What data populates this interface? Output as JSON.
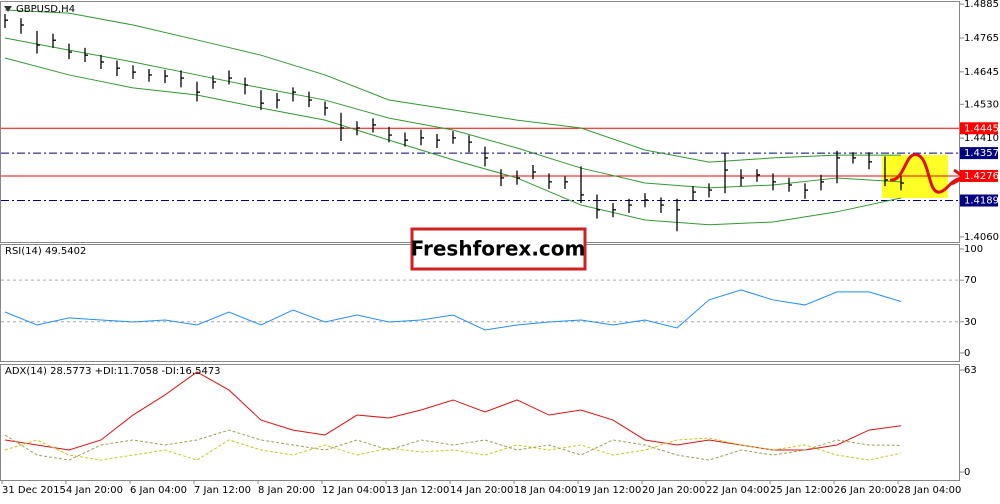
{
  "chart_data": [
    {
      "type": "ohlc",
      "title": "GBPUSD,H4",
      "high": [
        1.485,
        1.4835,
        1.479,
        1.478,
        1.4745,
        1.473,
        1.4705,
        1.4685,
        1.4668,
        1.4655,
        1.4652,
        1.465,
        1.461,
        1.4632,
        1.465,
        1.4625,
        1.458,
        1.457,
        1.459,
        1.4575,
        1.454,
        1.45,
        1.447,
        1.448,
        1.445,
        1.443,
        1.444,
        1.4425,
        1.4435,
        1.442,
        1.438,
        1.43,
        1.4295,
        1.4315,
        1.4285,
        1.4275,
        1.431,
        1.421,
        1.418,
        1.4195,
        1.4215,
        1.42,
        1.4195,
        1.424,
        1.425,
        1.4357,
        1.43,
        1.43,
        1.4285,
        1.427,
        1.425,
        1.428,
        1.4365,
        1.436,
        1.436,
        1.4345,
        1.4275
      ],
      "low": [
        1.48,
        1.478,
        1.471,
        1.473,
        1.469,
        1.468,
        1.4655,
        1.463,
        1.462,
        1.461,
        1.4605,
        1.459,
        1.454,
        1.4585,
        1.46,
        1.4565,
        1.451,
        1.4515,
        1.454,
        1.452,
        1.449,
        1.44,
        1.442,
        1.443,
        1.4395,
        1.438,
        1.4385,
        1.4375,
        1.439,
        1.436,
        1.431,
        1.424,
        1.4245,
        1.4265,
        1.423,
        1.423,
        1.418,
        1.4125,
        1.413,
        1.4145,
        1.4165,
        1.4145,
        1.408,
        1.419,
        1.42,
        1.4215,
        1.424,
        1.4255,
        1.4225,
        1.422,
        1.4195,
        1.4225,
        1.425,
        1.432,
        1.43,
        1.424,
        1.4225
      ],
      "close": [
        1.4828,
        1.4811,
        1.474,
        1.4757,
        1.4715,
        1.4704,
        1.468,
        1.4658,
        1.4644,
        1.4634,
        1.463,
        1.4623,
        1.4573,
        1.4609,
        1.4623,
        1.4598,
        1.4534,
        1.4545,
        1.4573,
        1.4545,
        1.4517,
        1.4446,
        1.4446,
        1.4457,
        1.4421,
        1.4403,
        1.4411,
        1.4403,
        1.4411,
        1.4396,
        1.434,
        1.4269,
        1.4269,
        1.429,
        1.4255,
        1.4255,
        1.4209,
        1.4156,
        1.4156,
        1.4173,
        1.4191,
        1.4173,
        1.4156,
        1.4219,
        1.4226,
        1.4297,
        1.4269,
        1.428,
        1.4255,
        1.4244,
        1.4226,
        1.4255,
        1.434,
        1.434,
        1.4326,
        1.4262,
        1.4251
      ],
      "bar_color": "#000000",
      "bands": {
        "color": "#2e9b2e",
        "upper": [
          1.4864,
          1.4853,
          1.4811,
          1.4758,
          1.4704,
          1.4634,
          1.4545,
          1.451,
          1.4474,
          1.4446,
          1.4368,
          1.4325,
          1.434,
          1.435,
          1.435
        ],
        "middle": [
          1.4765,
          1.4722,
          1.468,
          1.4634,
          1.4588,
          1.4545,
          1.4481,
          1.4439,
          1.4375,
          1.4304,
          1.4251,
          1.4234,
          1.4244,
          1.4269,
          1.4255
        ],
        "lower": [
          1.4694,
          1.4634,
          1.4588,
          1.4563,
          1.4517,
          1.4474,
          1.4403,
          1.4333,
          1.4269,
          1.4173,
          1.412,
          1.4103,
          1.4113,
          1.4149,
          1.4198
        ]
      },
      "levels": [
        {
          "value": 1.4445,
          "color": "#ff0000",
          "style": "solid"
        },
        {
          "value": 1.4357,
          "color": "#000080",
          "style": "dashdot"
        },
        {
          "value": 1.4276,
          "color": "#ff0000",
          "style": "solid"
        },
        {
          "value": 1.4189,
          "color": "#000080",
          "style": "dashdot"
        }
      ],
      "ylim": [
        1.4042,
        1.4896
      ],
      "yticks": [
        1.4885,
        1.4765,
        1.4645,
        {
          "value": 1.453,
          "label": "1.4530"
        },
        {
          "value": 1.441,
          "label": "1.4410"
        },
        {
          "value": 1.406,
          "label": "1.4060"
        }
      ]
    },
    {
      "type": "line",
      "title": "RSI(14) 49.5402",
      "lines": [
        {
          "color": "#1e90ff",
          "dash": false,
          "values": [
            39.4,
            26.9,
            33.7,
            31.7,
            29.8,
            31.7,
            26.9,
            39.4,
            26.9,
            41.3,
            29.8,
            36.5,
            29.8,
            31.7,
            36.5,
            22.1,
            26.9,
            29.8,
            31.7,
            26.9,
            31.7,
            24.0,
            51.0,
            60.6,
            51.0,
            46.2,
            58.7,
            58.7,
            49.5
          ]
        }
      ],
      "ylim": [
        -8.7,
        104.8
      ],
      "yticks": [
        100,
        70,
        30,
        0
      ],
      "grid": "dashed"
    },
    {
      "type": "line",
      "title": "ADX(14) 28.5773 +DI:11.7058 -DI:16.5473",
      "lines": [
        {
          "color": "#e01010",
          "dash": false,
          "values": [
            19.8,
            16.7,
            13.6,
            19.8,
            35.2,
            47.6,
            61.8,
            50.6,
            32.1,
            25.9,
            22.9,
            35.2,
            33.4,
            38.3,
            44.5,
            37.1,
            44.5,
            35.2,
            38.3,
            32.1,
            19.8,
            16.7,
            19.8,
            16.7,
            13.6,
            13.6,
            16.7,
            25.9,
            28.6
          ]
        },
        {
          "color": "#c8c820",
          "dash": true,
          "values": [
            13.6,
            19.8,
            10.5,
            7.4,
            10.5,
            13.6,
            7.4,
            19.8,
            13.6,
            10.5,
            16.7,
            10.5,
            14.8,
            12.4,
            13.6,
            10.5,
            16.7,
            13.6,
            16.7,
            10.5,
            13.6,
            19.8,
            21.0,
            16.7,
            13.6,
            16.7,
            10.5,
            7.4,
            11.7
          ]
        },
        {
          "color": "#a0a050",
          "dash": true,
          "values": [
            22.9,
            10.5,
            7.4,
            16.7,
            19.8,
            16.7,
            19.8,
            25.9,
            19.8,
            16.7,
            13.6,
            19.8,
            13.6,
            19.8,
            16.7,
            19.8,
            13.6,
            16.7,
            10.5,
            19.8,
            16.7,
            10.5,
            7.4,
            13.6,
            10.5,
            13.6,
            19.8,
            16.7,
            16.5
          ]
        }
      ],
      "ylim": [
        -4.9,
        66.7
      ],
      "yticks": [
        63,
        0
      ],
      "grid": false
    }
  ],
  "time_axis": [
    "31 Dec 2015",
    "4 Jan 20:00",
    "6 Jan 04:00",
    "7 Jan 12:00",
    "8 Jan 20:00",
    "12 Jan 04:00",
    "13 Jan 12:00",
    "14 Jan 20:00",
    "18 Jan 04:00",
    "19 Jan 12:00",
    "20 Jan 20:00",
    "22 Jan 04:00",
    "25 Jan 12:00",
    "26 Jan 20:00",
    "28 Jan 04:00"
  ],
  "watermark": "Freshforex.com"
}
